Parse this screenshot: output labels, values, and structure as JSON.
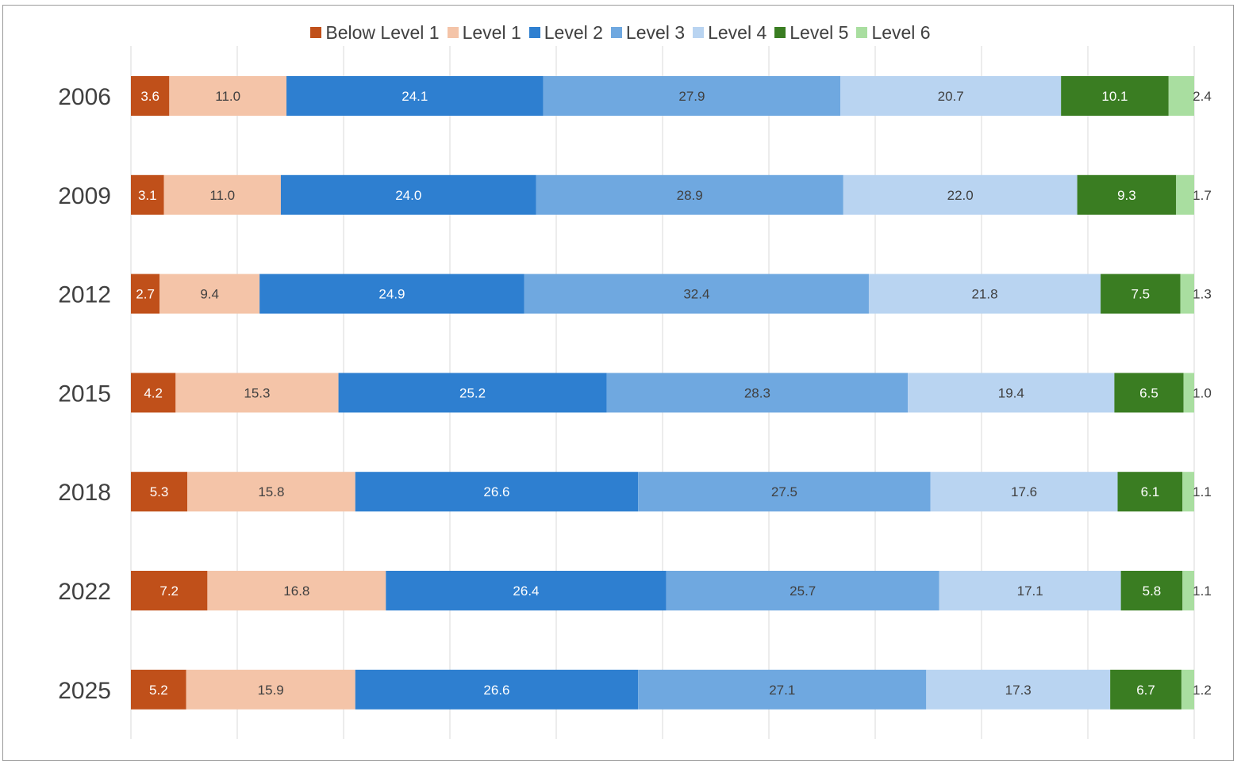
{
  "chart_data": {
    "type": "bar",
    "orientation": "horizontal",
    "stacked": true,
    "legend_position": "top",
    "grid": true,
    "xlim": [
      0,
      100
    ],
    "categories": [
      "2006",
      "2009",
      "2012",
      "2015",
      "2018",
      "2022",
      "2025"
    ],
    "series": [
      {
        "name": "Below Level 1",
        "color": "#c0501a",
        "label_color": "#ffffff",
        "values": [
          3.6,
          3.1,
          2.7,
          4.2,
          5.3,
          7.2,
          5.2
        ]
      },
      {
        "name": "Level 1",
        "color": "#f4c4a8",
        "label_color": "#404040",
        "values": [
          11.0,
          11.0,
          9.4,
          15.3,
          15.8,
          16.8,
          15.9
        ]
      },
      {
        "name": "Level 2",
        "color": "#2e7fd0",
        "label_color": "#ffffff",
        "values": [
          24.1,
          24.0,
          24.9,
          25.2,
          26.6,
          26.4,
          26.6
        ]
      },
      {
        "name": "Level 3",
        "color": "#6fa8e0",
        "label_color": "#404040",
        "values": [
          27.9,
          28.9,
          32.4,
          28.3,
          27.5,
          25.7,
          27.1
        ]
      },
      {
        "name": "Level 4",
        "color": "#b9d4f1",
        "label_color": "#404040",
        "values": [
          20.7,
          22.0,
          21.8,
          19.4,
          17.6,
          17.1,
          17.3
        ]
      },
      {
        "name": "Level 5",
        "color": "#3a7d22",
        "label_color": "#ffffff",
        "values": [
          10.1,
          9.3,
          7.5,
          6.5,
          6.1,
          5.8,
          6.7
        ]
      },
      {
        "name": "Level 6",
        "color": "#a9dea0",
        "label_color": "#404040",
        "values": [
          2.4,
          1.7,
          1.3,
          1.0,
          1.1,
          1.1,
          1.2
        ]
      }
    ]
  }
}
